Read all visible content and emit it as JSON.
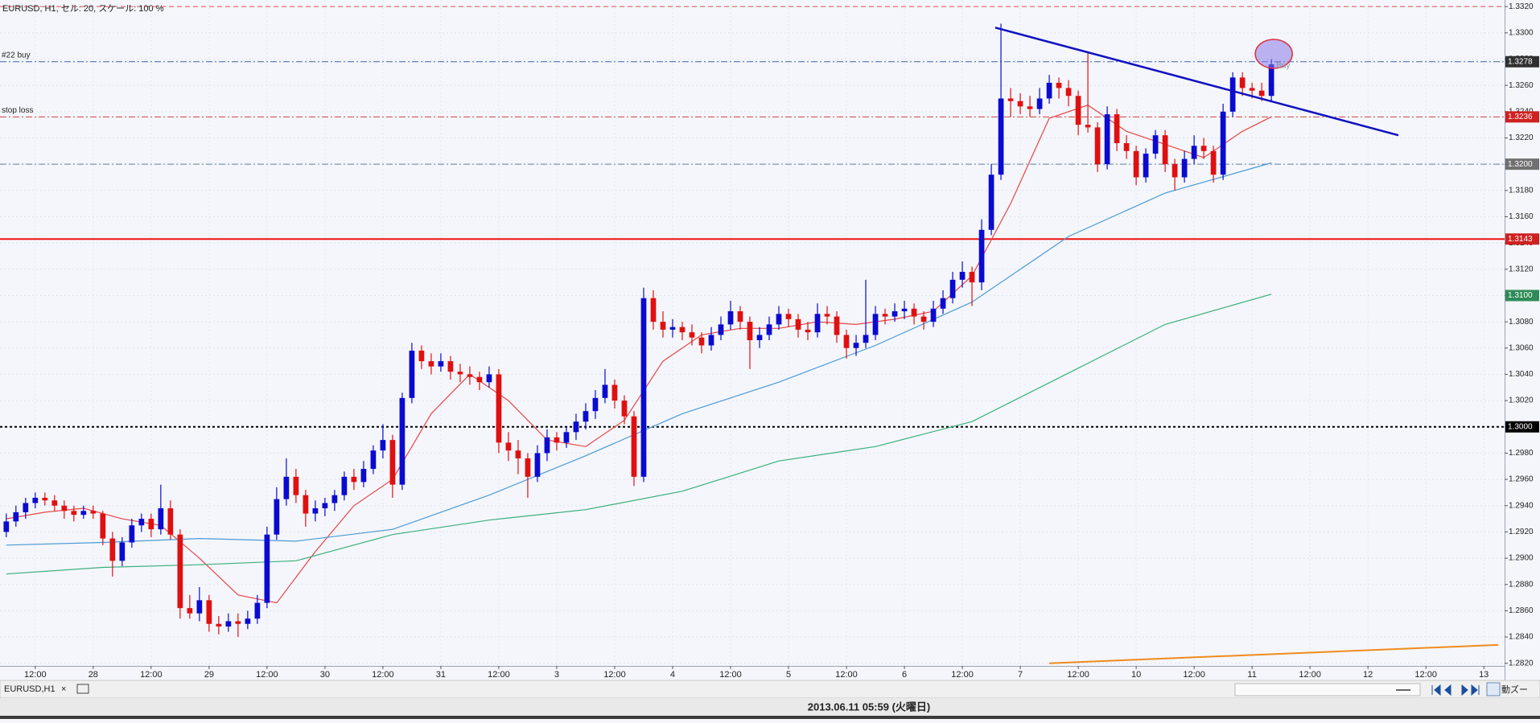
{
  "chart_data": {
    "type": "candlestick",
    "title": "EURUSD, H1, セル: 20, スケール: 100 %",
    "x": [
      -6,
      -4,
      -2,
      0,
      2,
      4,
      6,
      8,
      10,
      12,
      14,
      16,
      18,
      20,
      22,
      24,
      26,
      28,
      30,
      32,
      34,
      36,
      38,
      40,
      42,
      44,
      46,
      48,
      50,
      52,
      54,
      56,
      58,
      60,
      62,
      64,
      66,
      68,
      70,
      72,
      74,
      76,
      78,
      80,
      82,
      84,
      86,
      88,
      90,
      92,
      94,
      96,
      98,
      100,
      102,
      104,
      106,
      108,
      110,
      112,
      114,
      116,
      118,
      120,
      122,
      124,
      126,
      128,
      130,
      132,
      134,
      136,
      138,
      140,
      142,
      144,
      146,
      148,
      150,
      152,
      154,
      156,
      158,
      160,
      162,
      164,
      166,
      168,
      170,
      172,
      174,
      176,
      178,
      180,
      182,
      184,
      186,
      188,
      190,
      192,
      194,
      196,
      198,
      200,
      202,
      204,
      206,
      208,
      210,
      212,
      214,
      216,
      218,
      220,
      222,
      224,
      226,
      228,
      230,
      232,
      234,
      236,
      238,
      240,
      242,
      244,
      246,
      248,
      250,
      252,
      254,
      256
    ],
    "ohlc": [
      [
        1.292,
        1.2934,
        1.2916,
        1.2928
      ],
      [
        1.2928,
        1.294,
        1.2924,
        1.2935
      ],
      [
        1.2935,
        1.2946,
        1.293,
        1.2942
      ],
      [
        1.2942,
        1.295,
        1.2938,
        1.2946
      ],
      [
        1.2946,
        1.295,
        1.294,
        1.2944
      ],
      [
        1.2944,
        1.2948,
        1.2936,
        1.294
      ],
      [
        1.294,
        1.2944,
        1.293,
        1.2936
      ],
      [
        1.2936,
        1.294,
        1.2928,
        1.2933
      ],
      [
        1.2933,
        1.294,
        1.293,
        1.2936
      ],
      [
        1.2936,
        1.294,
        1.293,
        1.2934
      ],
      [
        1.2934,
        1.2936,
        1.291,
        1.2915
      ],
      [
        1.2915,
        1.292,
        1.2886,
        1.2898
      ],
      [
        1.2898,
        1.2916,
        1.2894,
        1.2912
      ],
      [
        1.2912,
        1.293,
        1.2908,
        1.2925
      ],
      [
        1.2925,
        1.2934,
        1.292,
        1.293
      ],
      [
        1.293,
        1.2934,
        1.2916,
        1.2922
      ],
      [
        1.2922,
        1.2956,
        1.2918,
        1.2938
      ],
      [
        1.2938,
        1.2944,
        1.2914,
        1.2918
      ],
      [
        1.2918,
        1.2922,
        1.2854,
        1.2862
      ],
      [
        1.2862,
        1.2872,
        1.2854,
        1.2858
      ],
      [
        1.2858,
        1.2878,
        1.2852,
        1.2868
      ],
      [
        1.2868,
        1.2872,
        1.2844,
        1.285
      ],
      [
        1.285,
        1.2856,
        1.2842,
        1.2848
      ],
      [
        1.2848,
        1.2858,
        1.2844,
        1.2852
      ],
      [
        1.2852,
        1.2858,
        1.284,
        1.285
      ],
      [
        1.285,
        1.286,
        1.2846,
        1.2854
      ],
      [
        1.2854,
        1.2872,
        1.285,
        1.2866
      ],
      [
        1.2866,
        1.2924,
        1.2862,
        1.2918
      ],
      [
        1.2918,
        1.2954,
        1.2914,
        1.2945
      ],
      [
        1.2945,
        1.2976,
        1.294,
        1.2962
      ],
      [
        1.2962,
        1.2968,
        1.2942,
        1.2948
      ],
      [
        1.2948,
        1.2952,
        1.2924,
        1.2934
      ],
      [
        1.2934,
        1.2944,
        1.2928,
        1.2938
      ],
      [
        1.2938,
        1.2946,
        1.2932,
        1.2942
      ],
      [
        1.2942,
        1.2952,
        1.2936,
        1.2948
      ],
      [
        1.2948,
        1.2966,
        1.2944,
        1.2962
      ],
      [
        1.2962,
        1.2968,
        1.2952,
        1.2958
      ],
      [
        1.2958,
        1.2974,
        1.2954,
        1.2968
      ],
      [
        1.2968,
        1.2986,
        1.2964,
        1.2982
      ],
      [
        1.2982,
        1.3002,
        1.2976,
        1.299
      ],
      [
        1.299,
        1.2994,
        1.2946,
        1.2956
      ],
      [
        1.2956,
        1.3026,
        1.2952,
        1.3022
      ],
      [
        1.3022,
        1.3064,
        1.3018,
        1.3058
      ],
      [
        1.3058,
        1.3062,
        1.3044,
        1.305
      ],
      [
        1.305,
        1.3056,
        1.304,
        1.3046
      ],
      [
        1.3046,
        1.3056,
        1.3042,
        1.305
      ],
      [
        1.305,
        1.3054,
        1.3036,
        1.3042
      ],
      [
        1.3042,
        1.3048,
        1.3034,
        1.304
      ],
      [
        1.304,
        1.3046,
        1.3032,
        1.3038
      ],
      [
        1.3038,
        1.3042,
        1.3028,
        1.3034
      ],
      [
        1.3034,
        1.3046,
        1.303,
        1.304
      ],
      [
        1.304,
        1.3044,
        1.298,
        1.2988
      ],
      [
        1.2988,
        1.2996,
        1.2974,
        1.2982
      ],
      [
        1.2982,
        1.299,
        1.2964,
        1.2976
      ],
      [
        1.2976,
        1.298,
        1.2946,
        1.2962
      ],
      [
        1.2962,
        1.2986,
        1.2958,
        1.298
      ],
      [
        1.298,
        1.2998,
        1.2974,
        1.2992
      ],
      [
        1.2992,
        1.2996,
        1.2982,
        1.2988
      ],
      [
        1.2988,
        1.3,
        1.2984,
        1.2996
      ],
      [
        1.2996,
        1.301,
        1.299,
        1.3004
      ],
      [
        1.3004,
        1.3018,
        1.2998,
        1.3012
      ],
      [
        1.3012,
        1.3028,
        1.3006,
        1.3022
      ],
      [
        1.3022,
        1.3044,
        1.3018,
        1.3032
      ],
      [
        1.3032,
        1.3036,
        1.3014,
        1.302
      ],
      [
        1.302,
        1.3024,
        1.3002,
        1.3008
      ],
      [
        1.3008,
        1.3012,
        1.2955,
        1.2962
      ],
      [
        1.2962,
        1.3106,
        1.2958,
        1.3098
      ],
      [
        1.3098,
        1.3104,
        1.3074,
        1.308
      ],
      [
        1.308,
        1.3088,
        1.3068,
        1.3074
      ],
      [
        1.3074,
        1.3082,
        1.3068,
        1.3076
      ],
      [
        1.3076,
        1.308,
        1.3066,
        1.3072
      ],
      [
        1.3072,
        1.3078,
        1.3062,
        1.3068
      ],
      [
        1.3068,
        1.3072,
        1.3056,
        1.3062
      ],
      [
        1.3062,
        1.3076,
        1.3058,
        1.307
      ],
      [
        1.307,
        1.3084,
        1.3066,
        1.3078
      ],
      [
        1.3078,
        1.3096,
        1.3074,
        1.3088
      ],
      [
        1.3088,
        1.3092,
        1.3074,
        1.308
      ],
      [
        1.308,
        1.3084,
        1.3044,
        1.3066
      ],
      [
        1.3066,
        1.3076,
        1.306,
        1.307
      ],
      [
        1.307,
        1.3084,
        1.3066,
        1.3078
      ],
      [
        1.3078,
        1.3092,
        1.3074,
        1.3086
      ],
      [
        1.3086,
        1.309,
        1.3076,
        1.3082
      ],
      [
        1.3082,
        1.3086,
        1.3068,
        1.3074
      ],
      [
        1.3074,
        1.308,
        1.3066,
        1.3072
      ],
      [
        1.3072,
        1.3094,
        1.3068,
        1.3086
      ],
      [
        1.3086,
        1.3092,
        1.3078,
        1.3084
      ],
      [
        1.3084,
        1.3088,
        1.3064,
        1.307
      ],
      [
        1.307,
        1.3074,
        1.3052,
        1.306
      ],
      [
        1.306,
        1.307,
        1.3054,
        1.3064
      ],
      [
        1.3064,
        1.3112,
        1.306,
        1.307
      ],
      [
        1.307,
        1.3092,
        1.3066,
        1.3086
      ],
      [
        1.3086,
        1.309,
        1.3078,
        1.3084
      ],
      [
        1.3084,
        1.3094,
        1.308,
        1.3088
      ],
      [
        1.3088,
        1.3096,
        1.3082,
        1.309
      ],
      [
        1.309,
        1.3094,
        1.3078,
        1.3084
      ],
      [
        1.3084,
        1.3088,
        1.3074,
        1.308
      ],
      [
        1.308,
        1.3096,
        1.3076,
        1.309
      ],
      [
        1.309,
        1.3104,
        1.3086,
        1.3098
      ],
      [
        1.3098,
        1.3118,
        1.3094,
        1.3112
      ],
      [
        1.3112,
        1.3126,
        1.3106,
        1.3118
      ],
      [
        1.3118,
        1.3122,
        1.3092,
        1.311
      ],
      [
        1.311,
        1.3158,
        1.3104,
        1.315
      ],
      [
        1.315,
        1.32,
        1.3146,
        1.3192
      ],
      [
        1.3192,
        1.3307,
        1.3188,
        1.325
      ],
      [
        1.325,
        1.3258,
        1.3236,
        1.3248
      ],
      [
        1.3248,
        1.3254,
        1.3238,
        1.3244
      ],
      [
        1.3244,
        1.3252,
        1.3236,
        1.3242
      ],
      [
        1.3242,
        1.3258,
        1.3238,
        1.325
      ],
      [
        1.325,
        1.3268,
        1.3246,
        1.3262
      ],
      [
        1.3262,
        1.3266,
        1.325,
        1.3258
      ],
      [
        1.3258,
        1.3264,
        1.3244,
        1.3252
      ],
      [
        1.3252,
        1.3256,
        1.3222,
        1.323
      ],
      [
        1.323,
        1.3285,
        1.3224,
        1.3228
      ],
      [
        1.3228,
        1.3232,
        1.3194,
        1.32
      ],
      [
        1.32,
        1.3244,
        1.3196,
        1.3238
      ],
      [
        1.3238,
        1.3242,
        1.321,
        1.3216
      ],
      [
        1.3216,
        1.3222,
        1.3204,
        1.321
      ],
      [
        1.321,
        1.3214,
        1.3184,
        1.319
      ],
      [
        1.319,
        1.3212,
        1.3186,
        1.3208
      ],
      [
        1.3208,
        1.3226,
        1.3204,
        1.3222
      ],
      [
        1.3222,
        1.3226,
        1.3194,
        1.32
      ],
      [
        1.32,
        1.3204,
        1.318,
        1.319
      ],
      [
        1.319,
        1.321,
        1.3186,
        1.3204
      ],
      [
        1.3204,
        1.3222,
        1.32,
        1.3214
      ],
      [
        1.3214,
        1.322,
        1.3204,
        1.321
      ],
      [
        1.321,
        1.3214,
        1.3186,
        1.3192
      ],
      [
        1.3192,
        1.3246,
        1.3188,
        1.324
      ],
      [
        1.324,
        1.327,
        1.3236,
        1.3266
      ],
      [
        1.3266,
        1.327,
        1.3252,
        1.3258
      ],
      [
        1.3258,
        1.3262,
        1.325,
        1.3256
      ],
      [
        1.3256,
        1.3262,
        1.3248,
        1.3252
      ],
      [
        1.3252,
        1.328,
        1.3248,
        1.3276
      ]
    ],
    "up_color": "#0a0ad0",
    "down_color": "#e01010",
    "overlays": [
      {
        "color": "#e84545",
        "x": [
          -6,
          2,
          10,
          18,
          26,
          34,
          42,
          50,
          58,
          66,
          74,
          82,
          90,
          98,
          106,
          114,
          122,
          130,
          138,
          146,
          154,
          162,
          170,
          178,
          186,
          194,
          202,
          210,
          218,
          226,
          234,
          242,
          250,
          256
        ],
        "values": [
          1.293,
          1.2935,
          1.2938,
          1.293,
          1.2925,
          1.29,
          1.2872,
          1.2866,
          1.2905,
          1.294,
          1.296,
          1.301,
          1.304,
          1.302,
          1.299,
          1.2985,
          1.3005,
          1.305,
          1.307,
          1.3075,
          1.3075,
          1.308,
          1.3078,
          1.3082,
          1.3088,
          1.3115,
          1.317,
          1.3235,
          1.3245,
          1.3225,
          1.3215,
          1.3205,
          1.3225,
          1.3236
        ]
      },
      {
        "color": "#4a9ad6",
        "x": [
          -6,
          14,
          34,
          54,
          74,
          94,
          114,
          134,
          154,
          174,
          194,
          214,
          234,
          256
        ],
        "values": [
          1.291,
          1.2912,
          1.2915,
          1.2913,
          1.2922,
          1.2948,
          1.2978,
          1.301,
          1.3034,
          1.3062,
          1.3095,
          1.3145,
          1.3178,
          1.3201
        ]
      },
      {
        "color": "#3cae7c",
        "x": [
          -6,
          14,
          34,
          54,
          74,
          94,
          114,
          134,
          154,
          174,
          194,
          214,
          234,
          256
        ],
        "values": [
          1.2888,
          1.2893,
          1.2895,
          1.2898,
          1.2918,
          1.2929,
          1.2937,
          1.2951,
          1.2974,
          1.2985,
          1.3004,
          1.3041,
          1.3078,
          1.3101
        ]
      }
    ],
    "levels": [
      {
        "value": 1.332,
        "color": "#e05050",
        "style": "dash"
      },
      {
        "value": 1.3278,
        "color": "#4060a0",
        "style": "dashdot",
        "label": "#22 buy"
      },
      {
        "value": 1.3236,
        "color": "#d04040",
        "style": "dashdot",
        "label": "stop loss"
      },
      {
        "value": 1.32,
        "color": "#6080a0",
        "style": "dashdot"
      },
      {
        "value": 1.3143,
        "color": "#ee1111",
        "style": "solid"
      },
      {
        "value": 1.3,
        "color": "#000000",
        "style": "dot"
      }
    ],
    "price_labels": [
      {
        "value": 1.3278,
        "label": "1.3278",
        "color": "#303030"
      },
      {
        "value": 1.3236,
        "label": "1.3236",
        "color": "#d02020"
      },
      {
        "value": 1.32,
        "label": "1.3200",
        "color": "#707070"
      },
      {
        "value": 1.3143,
        "label": "1.3143",
        "color": "#d02020"
      },
      {
        "value": 1.31,
        "label": "1.3100",
        "color": "#2e8b57"
      },
      {
        "value": 1.3,
        "label": "1.3000",
        "color": "#000000"
      }
    ],
    "trendlines": [
      {
        "x": [
          198.8,
          282.3
        ],
        "values": [
          1.3304,
          1.3222
        ],
        "color": "#1010c0",
        "width": 2.5
      },
      {
        "x": [
          210,
          303
        ],
        "values": [
          1.282,
          1.2834
        ],
        "color": "#f08a1c",
        "width": 2
      }
    ],
    "order": {
      "x": 256.5,
      "value": 1.3284,
      "label": "Buy"
    },
    "xlim": [
      -7.3,
      304.3
    ],
    "ylim": [
      1.2818,
      1.3325
    ],
    "xticks": [
      {
        "value": 0,
        "label": "12:00"
      },
      {
        "value": 12,
        "label": "28"
      },
      {
        "value": 24,
        "label": "12:00"
      },
      {
        "value": 36,
        "label": "29"
      },
      {
        "value": 48,
        "label": "12:00"
      },
      {
        "value": 60,
        "label": "30"
      },
      {
        "value": 72,
        "label": "12:00"
      },
      {
        "value": 84,
        "label": "31"
      },
      {
        "value": 96,
        "label": "12:00"
      },
      {
        "value": 108,
        "label": "3"
      },
      {
        "value": 120,
        "label": "12:00"
      },
      {
        "value": 132,
        "label": "4"
      },
      {
        "value": 144,
        "label": "12:00"
      },
      {
        "value": 156,
        "label": "5"
      },
      {
        "value": 168,
        "label": "12:00"
      },
      {
        "value": 180,
        "label": "6"
      },
      {
        "value": 192,
        "label": "12:00"
      },
      {
        "value": 204,
        "label": "7"
      },
      {
        "value": 216,
        "label": "12:00"
      },
      {
        "value": 228,
        "label": "10"
      },
      {
        "value": 240,
        "label": "12:00"
      },
      {
        "value": 252,
        "label": "11"
      },
      {
        "value": 264,
        "label": "12:00"
      },
      {
        "value": 276,
        "label": "12"
      },
      {
        "value": 288,
        "label": "12:00"
      },
      {
        "value": 300,
        "label": "13"
      }
    ],
    "yticks": [
      {
        "value": 1.282,
        "label": "1.2820"
      },
      {
        "value": 1.284,
        "label": "1.2840"
      },
      {
        "value": 1.286,
        "label": "1.2860"
      },
      {
        "value": 1.288,
        "label": "1.2880"
      },
      {
        "value": 1.29,
        "label": "1.2900"
      },
      {
        "value": 1.292,
        "label": "1.2920"
      },
      {
        "value": 1.294,
        "label": "1.2940"
      },
      {
        "value": 1.296,
        "label": "1.2960"
      },
      {
        "value": 1.298,
        "label": "1.2980"
      },
      {
        "value": 1.3,
        "label": "1.3000"
      },
      {
        "value": 1.302,
        "label": "1.3020"
      },
      {
        "value": 1.304,
        "label": "1.3040"
      },
      {
        "value": 1.306,
        "label": "1.3060"
      },
      {
        "value": 1.308,
        "label": "1.3080"
      },
      {
        "value": 1.31,
        "label": "1.3100"
      },
      {
        "value": 1.312,
        "label": "1.3120"
      },
      {
        "value": 1.314,
        "label": "1.3140"
      },
      {
        "value": 1.316,
        "label": "1.3160"
      },
      {
        "value": 1.318,
        "label": "1.3180"
      },
      {
        "value": 1.32,
        "label": "1.3200"
      },
      {
        "value": 1.322,
        "label": "1.3220"
      },
      {
        "value": 1.324,
        "label": "1.3240"
      },
      {
        "value": 1.326,
        "label": "1.3260"
      },
      {
        "value": 1.328,
        "label": "1.3280"
      },
      {
        "value": 1.33,
        "label": "1.3300"
      },
      {
        "value": 1.332,
        "label": "1.3320"
      }
    ],
    "grid": true
  },
  "ui": {
    "tab": "EURUSD,H1",
    "tab_close": "×",
    "status": "2013.06.11 05:59 (火曜日)",
    "auto_scroll": "動ズー"
  }
}
